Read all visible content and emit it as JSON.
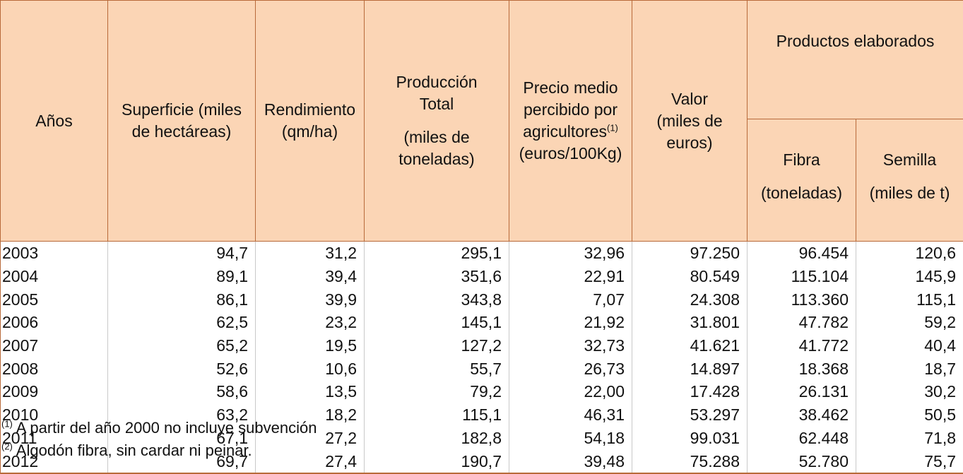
{
  "headers": {
    "anos": "Años",
    "superficie": "Superficie (miles de hectáreas)",
    "rendimiento_l1": "Rendimiento",
    "rendimiento_l2": "(qm/ha)",
    "produccion_l1": "Producción",
    "produccion_l2": "Total",
    "produccion_l3": "(miles de toneladas)",
    "precio_l1": "Precio medio percibido por agricultores",
    "precio_sup": "(1)",
    "precio_l2": "(euros/100Kg)",
    "valor_l1": "Valor",
    "valor_l2": "(miles de euros)",
    "productos": "Productos elaborados",
    "fibra_l1": "Fibra",
    "fibra_l2": "(toneladas)",
    "semilla_l1": "Semilla",
    "semilla_l2": "(miles de t)"
  },
  "rows": [
    [
      "2003",
      "94,7",
      "31,2",
      "295,1",
      "32,96",
      "97.250",
      "96.454",
      "120,6"
    ],
    [
      "2004",
      "89,1",
      "39,4",
      "351,6",
      "22,91",
      "80.549",
      "115.104",
      "145,9"
    ],
    [
      "2005",
      "86,1",
      "39,9",
      "343,8",
      "7,07",
      "24.308",
      "113.360",
      "115,1"
    ],
    [
      "2006",
      "62,5",
      "23,2",
      "145,1",
      "21,92",
      "31.801",
      "47.782",
      "59,2"
    ],
    [
      "2007",
      "65,2",
      "19,5",
      "127,2",
      "32,73",
      "41.621",
      "41.772",
      "40,4"
    ],
    [
      "2008",
      "52,6",
      "10,6",
      "55,7",
      "26,73",
      "14.897",
      "18.368",
      "18,7"
    ],
    [
      "2009",
      "58,6",
      "13,5",
      "79,2",
      "22,00",
      "17.428",
      "26.131",
      "30,2"
    ],
    [
      "2010",
      "63,2",
      "18,2",
      "115,1",
      "46,31",
      "53.297",
      "38.462",
      "50,5"
    ],
    [
      "2011",
      "67,1",
      "27,2",
      "182,8",
      "54,18",
      "99.031",
      "62.448",
      "71,8"
    ],
    [
      "2012",
      "69,7",
      "27,4",
      "190,7",
      "39,48",
      "75.288",
      "52.780",
      "75,7"
    ]
  ],
  "notes": [
    {
      "mark": "(1)",
      "text": "A partir del año 2000 no incluye subvención"
    },
    {
      "mark": "(2)",
      "text": "Algodón fibra, sin cardar ni peinar."
    }
  ]
}
